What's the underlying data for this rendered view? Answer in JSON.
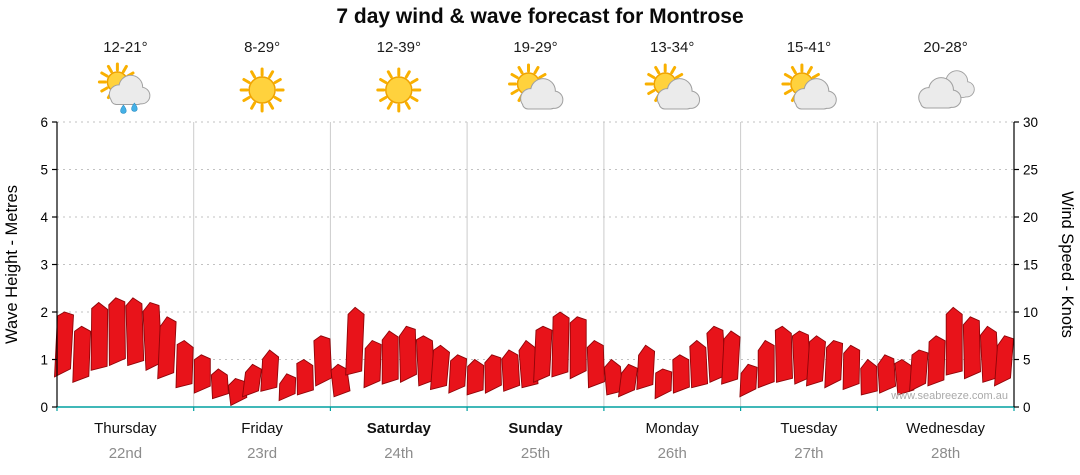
{
  "title": "7 day wind & wave forecast for Montrose",
  "chart_data": {
    "type": "area",
    "title": "7 day wind & wave forecast for Montrose",
    "watermark": "www.seabreeze.com.au",
    "grid": true,
    "legend": "none",
    "baseline_color": "#00a0a0",
    "y_left": {
      "label": "Wave Height - Metres",
      "min": 0,
      "max": 6,
      "tick_step": 1
    },
    "y_right": {
      "label": "Wind Speed - Knots",
      "min": 0,
      "max": 30,
      "tick_step": 5
    },
    "days": [
      {
        "name": "Thursday",
        "date": "22nd",
        "temp": "12-21°",
        "icon": "sun-cloud-rain",
        "weekend": false
      },
      {
        "name": "Friday",
        "date": "23rd",
        "temp": "8-29°",
        "icon": "sunny",
        "weekend": false
      },
      {
        "name": "Saturday",
        "date": "24th",
        "temp": "12-39°",
        "icon": "sunny",
        "weekend": true
      },
      {
        "name": "Sunday",
        "date": "25th",
        "temp": "19-29°",
        "icon": "sun-cloud",
        "weekend": true
      },
      {
        "name": "Monday",
        "date": "26th",
        "temp": "13-34°",
        "icon": "sun-cloud",
        "weekend": false
      },
      {
        "name": "Tuesday",
        "date": "27th",
        "temp": "15-41°",
        "icon": "sun-cloud",
        "weekend": false
      },
      {
        "name": "Wednesday",
        "date": "28th",
        "temp": "20-28°",
        "icon": "cloudy",
        "weekend": false
      }
    ],
    "wind_series": {
      "name": "Wind Speed",
      "units": "knots",
      "color": "#e8131a",
      "outline_color": "#8f0408",
      "points_per_day": 8,
      "values": [
        10,
        8.5,
        11,
        11.5,
        11.5,
        11,
        9.5,
        7,
        5.5,
        4,
        3,
        4.5,
        6,
        3.5,
        5,
        7.5,
        4.5,
        10.5,
        7,
        8,
        8.5,
        7.5,
        6.5,
        5.5,
        5,
        5.5,
        6,
        7,
        8.5,
        10,
        9.5,
        7,
        5,
        4.5,
        6.5,
        4,
        5.5,
        7,
        8.5,
        8,
        4.5,
        7,
        8.5,
        8,
        7.5,
        7,
        6.5,
        5,
        5.5,
        5,
        6,
        7.5,
        10.5,
        9.5,
        8.5,
        7.5
      ]
    }
  }
}
